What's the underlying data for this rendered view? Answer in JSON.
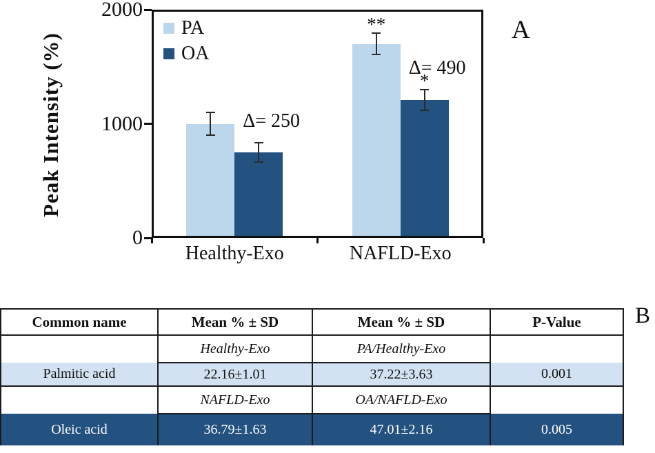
{
  "panels": {
    "a": "A",
    "b": "B"
  },
  "chart_data": {
    "type": "bar",
    "title": "",
    "ylabel": "Peak Intensity (%)",
    "xlabel": "",
    "ylim": [
      0,
      2000
    ],
    "yticks": [
      0,
      1000,
      2000
    ],
    "grid": false,
    "legend_position": "top-left",
    "categories": [
      "Healthy-Exo",
      "NAFLD-Exo"
    ],
    "series": [
      {
        "name": "PA",
        "color": "#bcd6ec",
        "values": [
          1000,
          1700
        ],
        "errors": [
          100,
          95
        ],
        "sig": [
          "",
          "**"
        ]
      },
      {
        "name": "OA",
        "color": "#235180",
        "values": [
          750,
          1210
        ],
        "errors": [
          85,
          90
        ],
        "sig": [
          "",
          "*"
        ]
      }
    ],
    "annotations": [
      {
        "group": 0,
        "text": "Δ= 250"
      },
      {
        "group": 1,
        "text": "Δ= 490"
      }
    ]
  },
  "table": {
    "headers": [
      "Common name",
      "Mean % ± SD",
      "Mean % ± SD",
      "P-Value"
    ],
    "rows": [
      {
        "type": "subheader",
        "cells": [
          "",
          "Healthy-Exo",
          "PA/Healthy-Exo",
          ""
        ]
      },
      {
        "type": "data-light",
        "cells": [
          "Palmitic acid",
          "22.16±1.01",
          "37.22±3.63",
          "0.001"
        ]
      },
      {
        "type": "subheader",
        "cells": [
          "",
          "NAFLD-Exo",
          "OA/NAFLD-Exo",
          ""
        ]
      },
      {
        "type": "data-dark",
        "cells": [
          "Oleic acid",
          "36.79±1.63",
          "47.01±2.16",
          "0.005"
        ]
      }
    ],
    "colors": {
      "light_row": "#d2e2f2",
      "dark_row": "#235180",
      "border": "#1c1c1c"
    }
  }
}
